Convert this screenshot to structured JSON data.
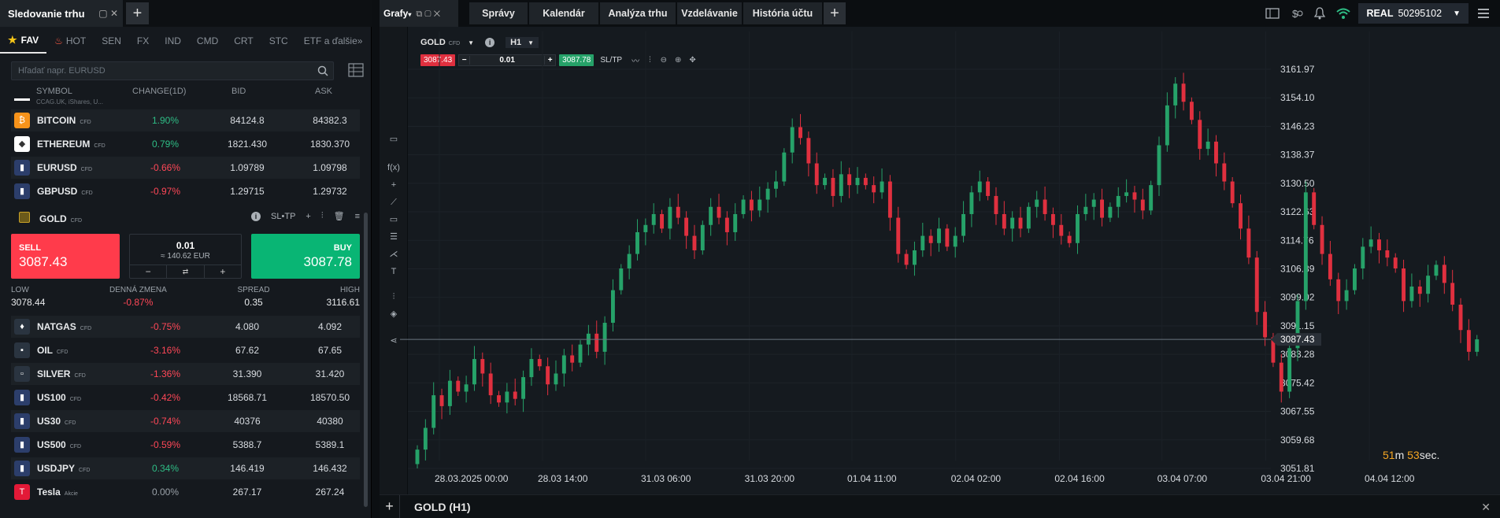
{
  "watchlist": {
    "title": "Sledovanie trhu",
    "filters": [
      "FAV",
      "HOT",
      "SEN",
      "FX",
      "IND",
      "CMD",
      "CRT",
      "STC",
      "ETF a ďalšie"
    ],
    "search_placeholder": "Hľadať napr. EURUSD",
    "columns": {
      "symbol": "SYMBOL",
      "change": "CHANGE(1D)",
      "bid": "BID",
      "ask": "ASK"
    },
    "partial_row": "CCAG.UK, iShares, U...",
    "rows_top": [
      {
        "symbol": "BITCOIN",
        "tag": "CFD",
        "change": "1.90%",
        "bid": "84124.8",
        "ask": "84382.3",
        "icon_color": "#f7931a",
        "icon": "₿",
        "dir": "up"
      },
      {
        "symbol": "ETHEREUM",
        "tag": "CFD",
        "change": "0.79%",
        "bid": "1821.430",
        "ask": "1830.370",
        "icon_color": "#ffffff",
        "icon": "◆",
        "dir": "up"
      },
      {
        "symbol": "EURUSD",
        "tag": "CFD",
        "change": "-0.66%",
        "bid": "1.09789",
        "ask": "1.09798",
        "icon_color": "#2c3e6b",
        "icon": "▮",
        "dir": "dn"
      },
      {
        "symbol": "GBPUSD",
        "tag": "CFD",
        "change": "-0.97%",
        "bid": "1.29715",
        "ask": "1.29732",
        "icon_color": "#2c3e6b",
        "icon": "▮",
        "dir": "dn"
      }
    ],
    "gold": {
      "symbol": "GOLD",
      "tag": "CFD",
      "sltp": "SL•TP",
      "sell_label": "SELL",
      "sell_price": "3087.43",
      "buy_label": "BUY",
      "buy_price": "3087.78",
      "volume": "0.01",
      "volume_eq": "≈ 140.62 EUR",
      "stats": {
        "low_label": "LOW",
        "low": "3078.44",
        "change_label": "DENNÁ ZMENA",
        "change": "-0.87%",
        "spread_label": "SPREAD",
        "spread": "0.35",
        "high_label": "HIGH",
        "high": "3116.61"
      }
    },
    "rows_bottom": [
      {
        "symbol": "NATGAS",
        "tag": "CFD",
        "change": "-0.75%",
        "bid": "4.080",
        "ask": "4.092",
        "icon_color": "#2a3440",
        "icon": "♦",
        "dir": "dn"
      },
      {
        "symbol": "OIL",
        "tag": "CFD",
        "change": "-3.16%",
        "bid": "67.62",
        "ask": "67.65",
        "icon_color": "#2a3440",
        "icon": "▪",
        "dir": "dn"
      },
      {
        "symbol": "SILVER",
        "tag": "CFD",
        "change": "-1.36%",
        "bid": "31.390",
        "ask": "31.420",
        "icon_color": "#2a3440",
        "icon": "▫",
        "dir": "dn"
      },
      {
        "symbol": "US100",
        "tag": "CFD",
        "change": "-0.42%",
        "bid": "18568.71",
        "ask": "18570.50",
        "icon_color": "#2c3e6b",
        "icon": "▮",
        "dir": "dn"
      },
      {
        "symbol": "US30",
        "tag": "CFD",
        "change": "-0.74%",
        "bid": "40376",
        "ask": "40380",
        "icon_color": "#2c3e6b",
        "icon": "▮",
        "dir": "dn"
      },
      {
        "symbol": "US500",
        "tag": "CFD",
        "change": "-0.59%",
        "bid": "5388.7",
        "ask": "5389.1",
        "icon_color": "#2c3e6b",
        "icon": "▮",
        "dir": "dn"
      },
      {
        "symbol": "USDJPY",
        "tag": "CFD",
        "change": "0.34%",
        "bid": "146.419",
        "ask": "146.432",
        "icon_color": "#2c3e6b",
        "icon": "▮",
        "dir": "up"
      },
      {
        "symbol": "Tesla",
        "tag": "Akcie",
        "change": "0.00%",
        "bid": "267.17",
        "ask": "267.24",
        "icon_color": "#e31937",
        "icon": "T",
        "dir": "zero"
      }
    ]
  },
  "topbar": {
    "chart_tab": "Grafy",
    "tabs": [
      "Správy",
      "Kalendár",
      "Analýza trhu",
      "Vzdelávanie",
      "História účtu"
    ],
    "account_type": "REAL",
    "account_number": "50295102"
  },
  "chart_toolbar": {
    "instrument": "GOLD",
    "instrument_tag": "CFD",
    "timeframe": "H1",
    "sell": "3087.43",
    "volume": "0.01",
    "buy": "3087.78",
    "sltp": "SL/TP"
  },
  "bottom": {
    "title": "GOLD (H1)"
  },
  "countdown": {
    "minutes": "51",
    "m": "m",
    "seconds": "53",
    "s": "sec."
  },
  "colors": {
    "up": "#2ebd85",
    "down": "#ff4757",
    "candle_up": "#26a269",
    "candle_down": "#e0303f"
  },
  "chart_data": {
    "type": "candlestick",
    "instrument": "GOLD (H1)",
    "y_ticks": [
      "3161.97",
      "3154.10",
      "3146.23",
      "3138.37",
      "3130.50",
      "3122.63",
      "3114.76",
      "3106.89",
      "3099.02",
      "3091.15",
      "3083.28",
      "3075.42",
      "3067.55",
      "3059.68",
      "3051.81"
    ],
    "ylim": [
      3051.81,
      3161.97
    ],
    "x_ticks": [
      "28.03.2025 00:00",
      "28.03 14:00",
      "31.03 06:00",
      "31.03 20:00",
      "01.04 11:00",
      "02.04 02:00",
      "02.04 16:00",
      "03.04 07:00",
      "03.04 21:00",
      "04.04 12:00"
    ],
    "current_price": "3087.43",
    "closes": [
      3057,
      3063,
      3072,
      3069,
      3076,
      3073,
      3075,
      3082,
      3078,
      3072,
      3070,
      3073,
      3071,
      3077,
      3082,
      3080,
      3075,
      3078,
      3083,
      3081,
      3086,
      3089,
      3084,
      3092,
      3101,
      3107,
      3111,
      3117,
      3119,
      3122,
      3118,
      3124,
      3121,
      3116,
      3112,
      3119,
      3124,
      3121,
      3117,
      3122,
      3126,
      3123,
      3126,
      3129,
      3131,
      3139,
      3146,
      3143,
      3136,
      3130,
      3132,
      3127,
      3133,
      3130,
      3132,
      3130,
      3128,
      3131,
      3121,
      3111,
      3108,
      3112,
      3116,
      3114,
      3118,
      3113,
      3116,
      3122,
      3128,
      3131,
      3127,
      3122,
      3118,
      3121,
      3118,
      3124,
      3126,
      3122,
      3119,
      3116,
      3114,
      3122,
      3124,
      3126,
      3121,
      3124,
      3127,
      3128,
      3126,
      3123,
      3130,
      3141,
      3152,
      3158,
      3153,
      3148,
      3140,
      3142,
      3136,
      3131,
      3125,
      3118,
      3110,
      3095,
      3088,
      3081,
      3073,
      3085,
      3098,
      3128,
      3119,
      3111,
      3104,
      3098,
      3101,
      3107,
      3113,
      3115,
      3112,
      3110,
      3107,
      3098,
      3102,
      3100,
      3105,
      3108,
      3103,
      3097,
      3090,
      3084,
      3087.43
    ]
  }
}
